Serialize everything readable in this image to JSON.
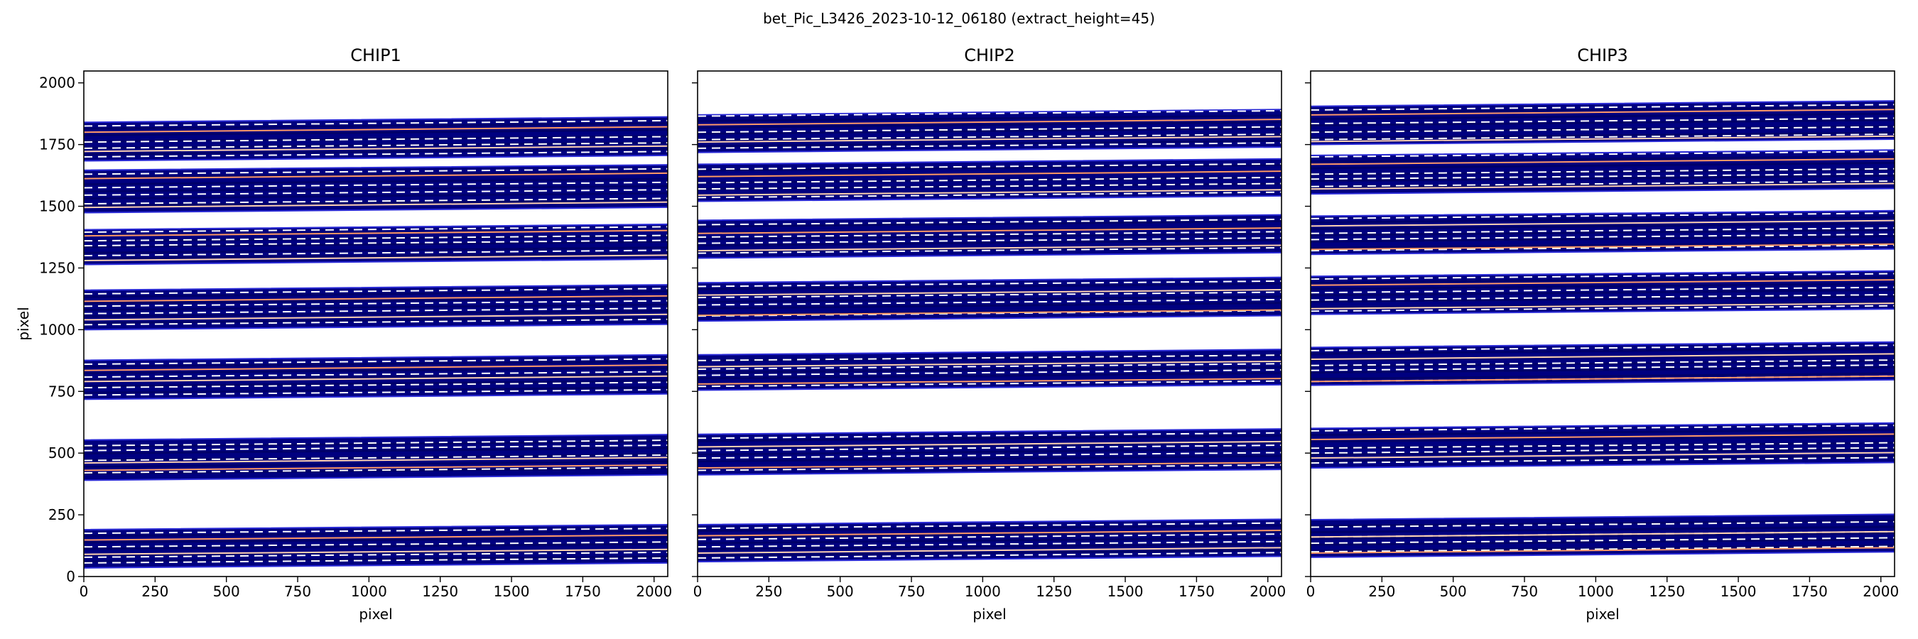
{
  "figure": {
    "title": "bet_Pic_L3426_2023-10-12_06180  (extract_height=45)"
  },
  "colors": {
    "order_fill": "#000080",
    "order_edge": "#2b2bd6",
    "trace_center": "#ff9966",
    "trace_light": "#ffd2b0",
    "aperture_dash": "#ffffff"
  },
  "chart_data": [
    {
      "type": "line",
      "title": "CHIP1",
      "xlabel": "pixel",
      "ylabel": "pixel",
      "xlim": [
        0,
        2048
      ],
      "ylim": [
        0,
        2048
      ],
      "xticks": [
        0,
        250,
        500,
        750,
        1000,
        1250,
        1500,
        1750,
        2000
      ],
      "yticks": [
        0,
        250,
        500,
        750,
        1000,
        1250,
        1500,
        1750,
        2000
      ],
      "ytick_labels_visible": true,
      "orders": [
        {
          "y_low": [
            35,
            55
          ],
          "y_high": [
            190,
            210
          ],
          "traces": [
            {
              "y": [
                90,
                110
              ],
              "style": "light"
            },
            {
              "y": [
                148,
                168
              ],
              "style": "center"
            }
          ],
          "dashes": [
            55,
            78,
            120,
            175
          ]
        },
        {
          "y_low": [
            390,
            412
          ],
          "y_high": [
            553,
            575
          ],
          "traces": [
            {
              "y": [
                430,
                452
              ],
              "style": "center"
            },
            {
              "y": [
                460,
                482
              ],
              "style": "light"
            }
          ],
          "dashes": [
            420,
            470,
            510,
            530
          ]
        },
        {
          "y_low": [
            718,
            740
          ],
          "y_high": [
            876,
            898
          ],
          "traces": [
            {
              "y": [
                790,
                812
              ],
              "style": "light"
            },
            {
              "y": [
                835,
                857
              ],
              "style": "center"
            }
          ],
          "dashes": [
            735,
            765,
            808,
            860
          ]
        },
        {
          "y_low": [
            1000,
            1022
          ],
          "y_high": [
            1160,
            1182
          ],
          "traces": [
            {
              "y": [
                1040,
                1062
              ],
              "style": "light"
            },
            {
              "y": [
                1115,
                1137
              ],
              "style": "center"
            }
          ],
          "dashes": [
            1020,
            1065,
            1095,
            1145
          ]
        },
        {
          "y_low": [
            1264,
            1286
          ],
          "y_high": [
            1405,
            1427
          ],
          "traces": [
            {
              "y": [
                1280,
                1302
              ],
              "style": "light"
            },
            {
              "y": [
                1380,
                1402
              ],
              "style": "center"
            }
          ],
          "dashes": [
            1300,
            1340,
            1360,
            1395
          ]
        },
        {
          "y_low": [
            1474,
            1496
          ],
          "y_high": [
            1646,
            1668
          ],
          "traces": [
            {
              "y": [
                1495,
                1517
              ],
              "style": "light"
            },
            {
              "y": [
                1612,
                1634
              ],
              "style": "center"
            }
          ],
          "dashes": [
            1510,
            1545,
            1575,
            1630
          ]
        },
        {
          "y_low": [
            1684,
            1706
          ],
          "y_high": [
            1840,
            1862
          ],
          "traces": [
            {
              "y": [
                1722,
                1744
              ],
              "style": "light"
            },
            {
              "y": [
                1800,
                1822
              ],
              "style": "center"
            }
          ],
          "dashes": [
            1700,
            1735,
            1760,
            1825
          ]
        }
      ]
    },
    {
      "type": "line",
      "title": "CHIP2",
      "xlabel": "pixel",
      "ylabel": "",
      "xlim": [
        0,
        2048
      ],
      "ylim": [
        0,
        2048
      ],
      "xticks": [
        0,
        250,
        500,
        750,
        1000,
        1250,
        1500,
        1750,
        2000
      ],
      "yticks": [
        0,
        250,
        500,
        750,
        1000,
        1250,
        1500,
        1750,
        2000
      ],
      "ytick_labels_visible": false,
      "orders": [
        {
          "y_low": [
            60,
            82
          ],
          "y_high": [
            210,
            232
          ],
          "traces": [
            {
              "y": [
                95,
                117
              ],
              "style": "light"
            },
            {
              "y": [
                165,
                187
              ],
              "style": "center"
            }
          ],
          "dashes": [
            75,
            120,
            150,
            195
          ]
        },
        {
          "y_low": [
            412,
            434
          ],
          "y_high": [
            576,
            598
          ],
          "traces": [
            {
              "y": [
                440,
                462
              ],
              "style": "center"
            },
            {
              "y": [
                525,
                547
              ],
              "style": "light"
            }
          ],
          "dashes": [
            430,
            480,
            510,
            560
          ]
        },
        {
          "y_low": [
            755,
            777
          ],
          "y_high": [
            898,
            920
          ],
          "traces": [
            {
              "y": [
                780,
                802
              ],
              "style": "center"
            },
            {
              "y": [
                850,
                872
              ],
              "style": "light"
            }
          ],
          "dashes": [
            770,
            815,
            840,
            875
          ]
        },
        {
          "y_low": [
            1035,
            1057
          ],
          "y_high": [
            1190,
            1212
          ],
          "traces": [
            {
              "y": [
                1058,
                1080
              ],
              "style": "center"
            },
            {
              "y": [
                1140,
                1162
              ],
              "style": "light"
            }
          ],
          "dashes": [
            1055,
            1100,
            1130,
            1175
          ]
        },
        {
          "y_low": [
            1290,
            1312
          ],
          "y_high": [
            1443,
            1465
          ],
          "traces": [
            {
              "y": [
                1390,
                1412
              ],
              "style": "center"
            },
            {
              "y": [
                1320,
                1342
              ],
              "style": "light"
            }
          ],
          "dashes": [
            1310,
            1350,
            1375,
            1425
          ]
        },
        {
          "y_low": [
            1520,
            1542
          ],
          "y_high": [
            1670,
            1692
          ],
          "traces": [
            {
              "y": [
                1545,
                1567
              ],
              "style": "light"
            },
            {
              "y": [
                1620,
                1642
              ],
              "style": "center"
            }
          ],
          "dashes": [
            1535,
            1570,
            1595,
            1650
          ]
        },
        {
          "y_low": [
            1718,
            1740
          ],
          "y_high": [
            1870,
            1892
          ],
          "traces": [
            {
              "y": [
                1760,
                1782
              ],
              "style": "light"
            },
            {
              "y": [
                1830,
                1852
              ],
              "style": "center"
            }
          ],
          "dashes": [
            1735,
            1770,
            1800,
            1865
          ]
        }
      ]
    },
    {
      "type": "line",
      "title": "CHIP3",
      "xlabel": "pixel",
      "ylabel": "",
      "xlim": [
        0,
        2048
      ],
      "ylim": [
        0,
        2048
      ],
      "xticks": [
        0,
        250,
        500,
        750,
        1000,
        1250,
        1500,
        1750,
        2000
      ],
      "yticks": [
        0,
        250,
        500,
        750,
        1000,
        1250,
        1500,
        1750,
        2000
      ],
      "ytick_labels_visible": false,
      "orders": [
        {
          "y_low": [
            78,
            100
          ],
          "y_high": [
            230,
            252
          ],
          "traces": [
            {
              "y": [
                95,
                117
              ],
              "style": "center"
            },
            {
              "y": [
                160,
                182
              ],
              "style": "light"
            }
          ],
          "dashes": [
            100,
            135,
            160,
            200
          ]
        },
        {
          "y_low": [
            440,
            462
          ],
          "y_high": [
            600,
            622
          ],
          "traces": [
            {
              "y": [
                555,
                577
              ],
              "style": "center"
            },
            {
              "y": [
                480,
                502
              ],
              "style": "light"
            }
          ],
          "dashes": [
            460,
            500,
            520,
            590
          ]
        },
        {
          "y_low": [
            775,
            797
          ],
          "y_high": [
            928,
            950
          ],
          "traces": [
            {
              "y": [
                790,
                812
              ],
              "style": "center"
            },
            {
              "y": [
                880,
                902
              ],
              "style": "light"
            }
          ],
          "dashes": [
            790,
            835,
            855,
            915
          ]
        },
        {
          "y_low": [
            1062,
            1084
          ],
          "y_high": [
            1216,
            1238
          ],
          "traces": [
            {
              "y": [
                1085,
                1107
              ],
              "style": "light"
            },
            {
              "y": [
                1180,
                1202
              ],
              "style": "center"
            }
          ],
          "dashes": [
            1075,
            1120,
            1150,
            1205
          ]
        },
        {
          "y_low": [
            1305,
            1327
          ],
          "y_high": [
            1460,
            1482
          ],
          "traces": [
            {
              "y": [
                1325,
                1347
              ],
              "style": "center"
            },
            {
              "y": [
                1420,
                1442
              ],
              "style": "light"
            }
          ],
          "dashes": [
            1320,
            1365,
            1390,
            1450
          ]
        },
        {
          "y_low": [
            1550,
            1572
          ],
          "y_high": [
            1706,
            1728
          ],
          "traces": [
            {
              "y": [
                1570,
                1592
              ],
              "style": "light"
            },
            {
              "y": [
                1670,
                1692
              ],
              "style": "center"
            }
          ],
          "dashes": [
            1580,
            1610,
            1630,
            1700
          ]
        },
        {
          "y_low": [
            1750,
            1772
          ],
          "y_high": [
            1905,
            1927
          ],
          "traces": [
            {
              "y": [
                1762,
                1784
              ],
              "style": "light"
            },
            {
              "y": [
                1870,
                1892
              ],
              "style": "center"
            }
          ],
          "dashes": [
            1770,
            1800,
            1835,
            1890
          ]
        }
      ]
    }
  ]
}
